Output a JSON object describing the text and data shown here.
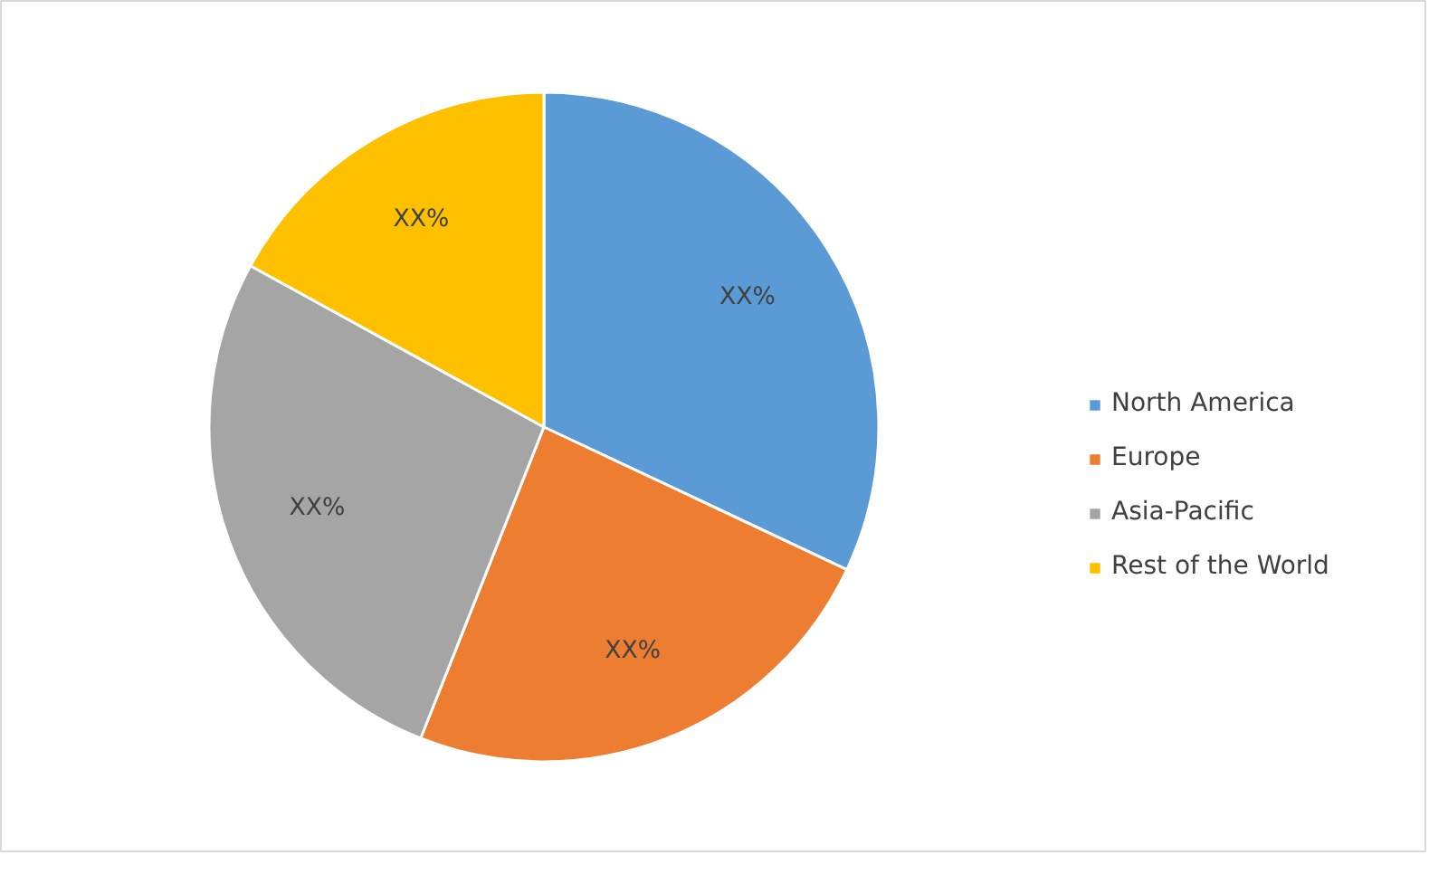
{
  "chart_data": {
    "type": "pie",
    "categories": [
      "North America",
      "Europe",
      "Asia-Pacific",
      "Rest of the World"
    ],
    "values": [
      32,
      24,
      27,
      17
    ],
    "colors": [
      "#5b9bd5",
      "#ed7d31",
      "#a5a5a5",
      "#ffc000"
    ],
    "value_labels": [
      "XX%",
      "XX%",
      "XX%",
      "XX%"
    ],
    "legend": "right"
  }
}
